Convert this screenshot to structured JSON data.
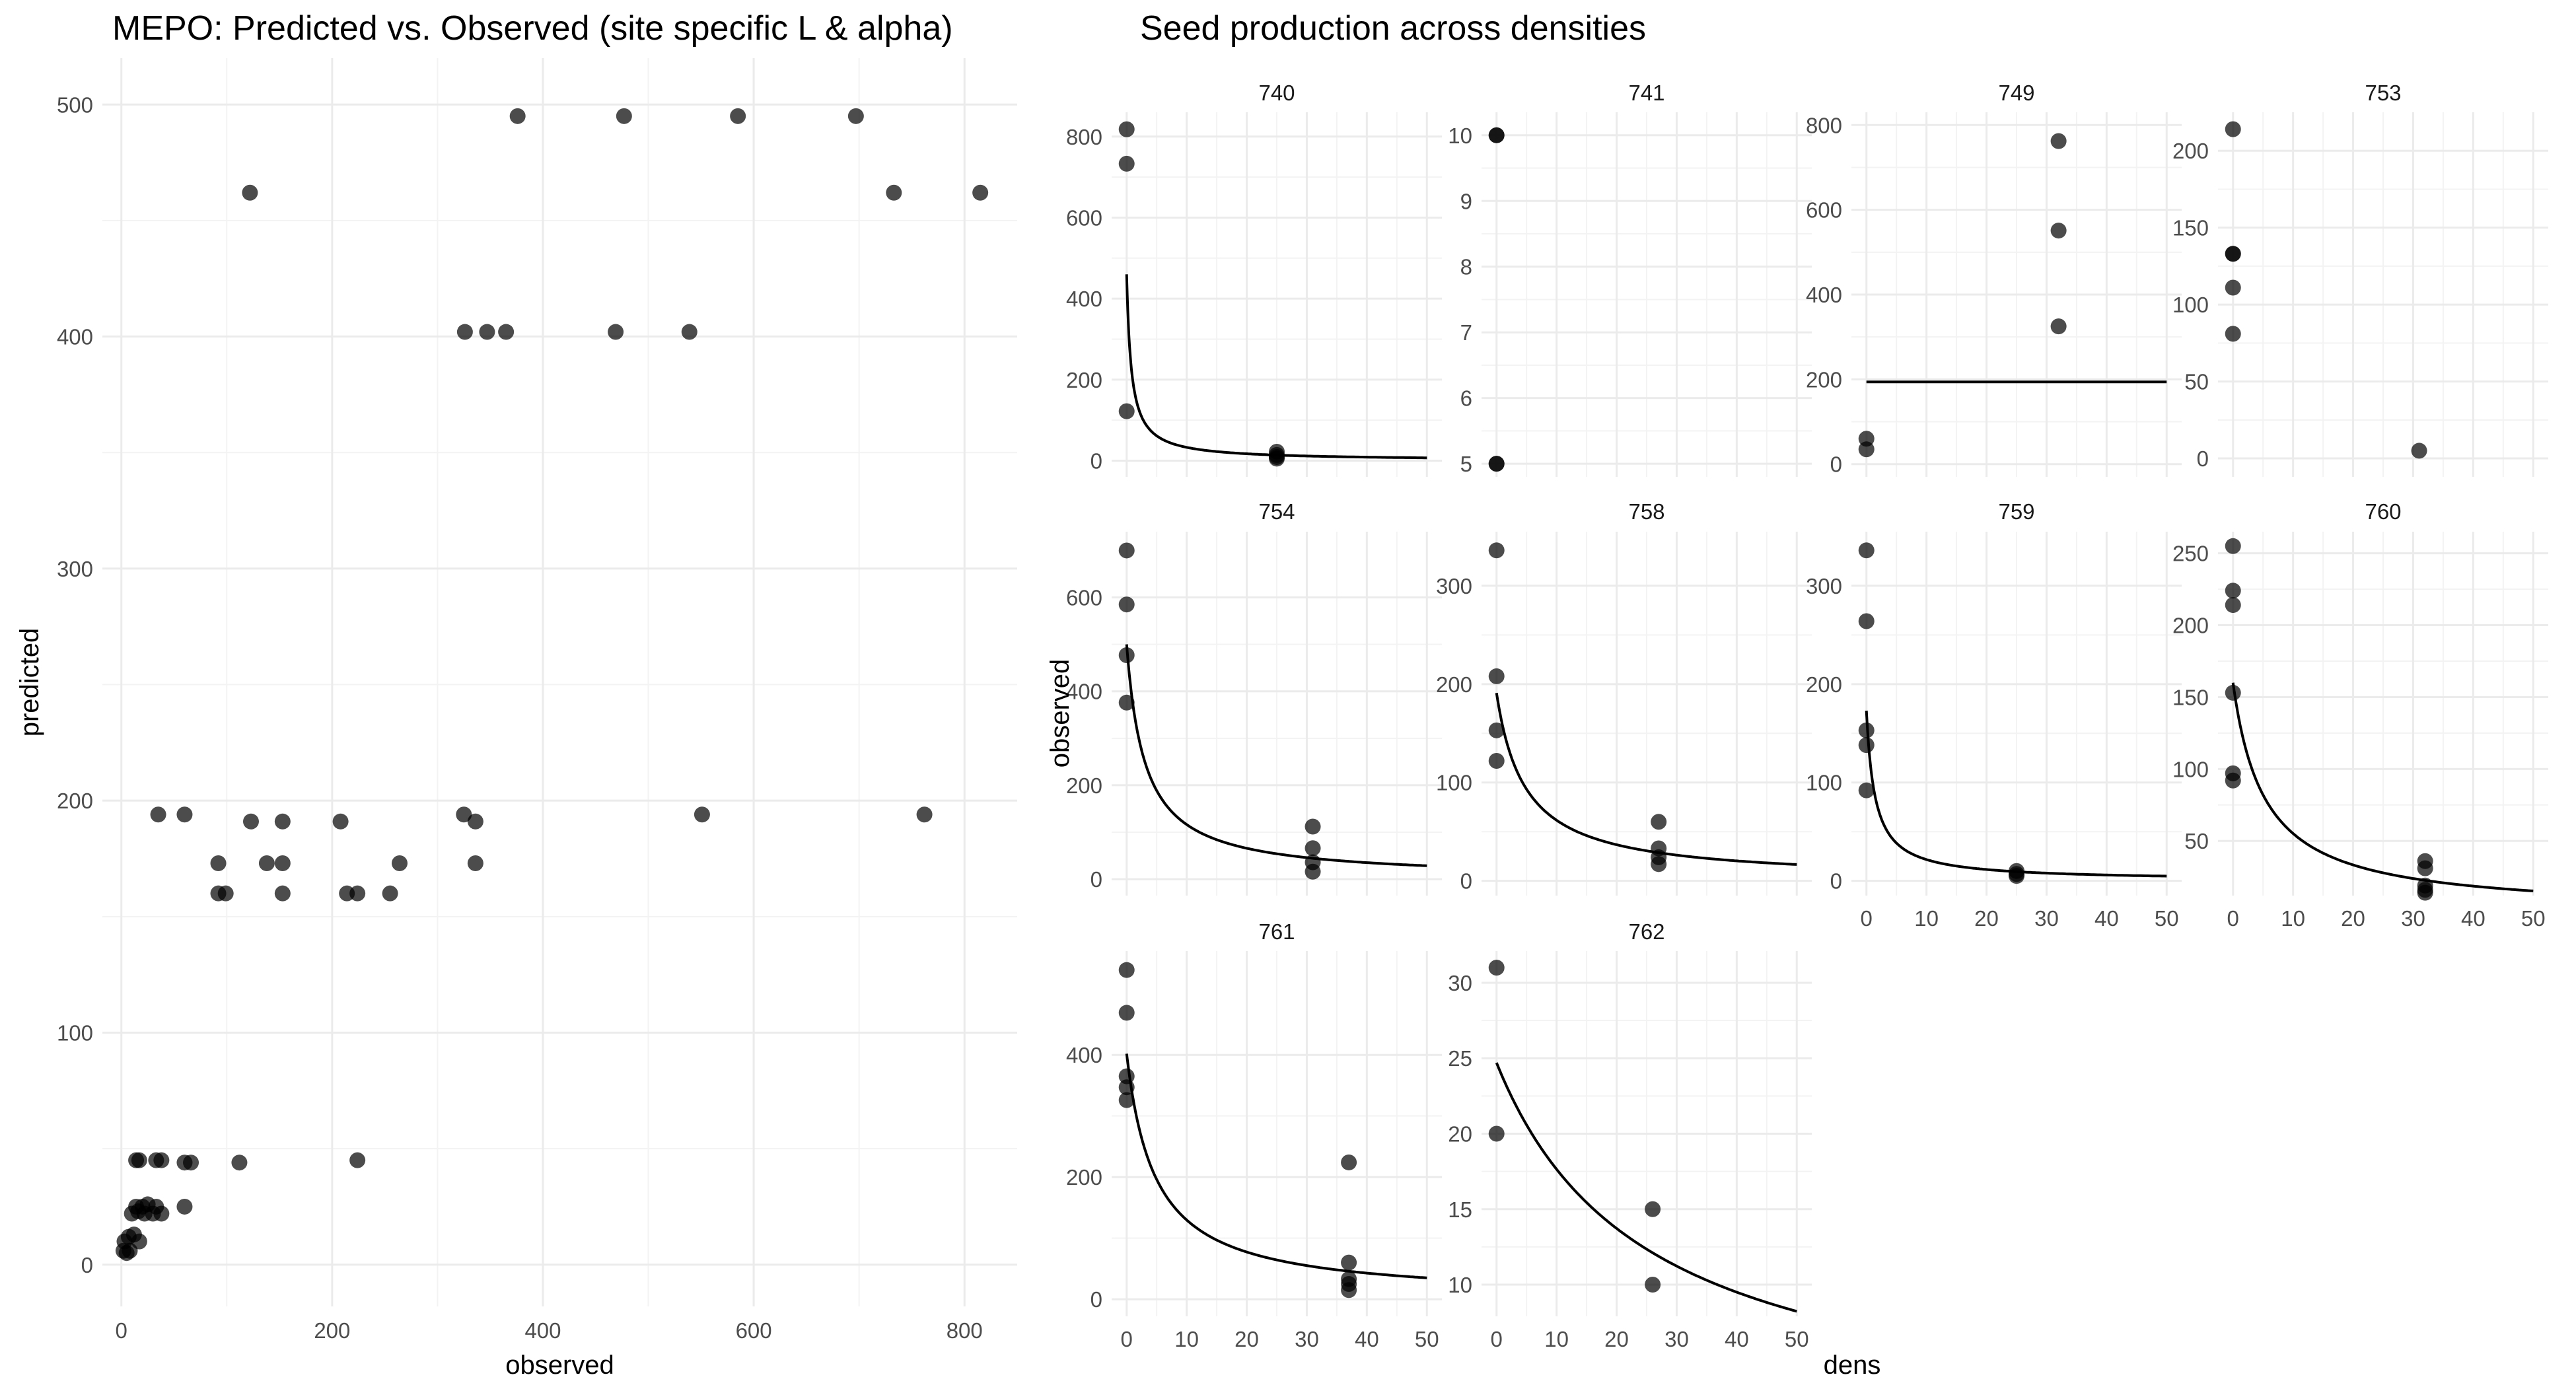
{
  "chart_data": [
    {
      "type": "scatter",
      "title": "MEPO: Predicted vs. Observed (site specific L & alpha)",
      "xlabel": "observed",
      "ylabel": "predicted",
      "xlim": [
        -18,
        850
      ],
      "ylim": [
        -18,
        520
      ],
      "x_ticks": [
        0,
        200,
        400,
        600,
        800
      ],
      "y_ticks": [
        0,
        100,
        200,
        300,
        400,
        500
      ],
      "grid": true,
      "points": [
        [
          122,
          462
        ],
        [
          733,
          462
        ],
        [
          815,
          462
        ],
        [
          376,
          495
        ],
        [
          477,
          495
        ],
        [
          585,
          495
        ],
        [
          697,
          495
        ],
        [
          326,
          402
        ],
        [
          347,
          402
        ],
        [
          365,
          402
        ],
        [
          469,
          402
        ],
        [
          539,
          402
        ],
        [
          35,
          194
        ],
        [
          60,
          194
        ],
        [
          325,
          194
        ],
        [
          551,
          194
        ],
        [
          762,
          194
        ],
        [
          123,
          191
        ],
        [
          153,
          191
        ],
        [
          208,
          191
        ],
        [
          336,
          191
        ],
        [
          92,
          173
        ],
        [
          138,
          173
        ],
        [
          153,
          173
        ],
        [
          264,
          173
        ],
        [
          336,
          173
        ],
        [
          92,
          160
        ],
        [
          99,
          160
        ],
        [
          153,
          160
        ],
        [
          214,
          160
        ],
        [
          224,
          160
        ],
        [
          255,
          160
        ],
        [
          14,
          45
        ],
        [
          17,
          45
        ],
        [
          33,
          45
        ],
        [
          38,
          45
        ],
        [
          60,
          44
        ],
        [
          66,
          44
        ],
        [
          112,
          44
        ],
        [
          224,
          45
        ],
        [
          14,
          25
        ],
        [
          20,
          25
        ],
        [
          25,
          26
        ],
        [
          33,
          25
        ],
        [
          60,
          25
        ],
        [
          10,
          22
        ],
        [
          16,
          23
        ],
        [
          22,
          22
        ],
        [
          30,
          22
        ],
        [
          38,
          22
        ],
        [
          3,
          10
        ],
        [
          7,
          12
        ],
        [
          12,
          13
        ],
        [
          17,
          10
        ],
        [
          2,
          6
        ],
        [
          5,
          5
        ],
        [
          8,
          6
        ]
      ]
    },
    {
      "type": "scatter",
      "title": "Seed production across densities",
      "xlabel": "dens",
      "ylabel": "observed",
      "x_ticks": [
        0,
        10,
        20,
        30,
        40,
        50
      ],
      "xlim": [
        -2.5,
        52.5
      ],
      "grid": true,
      "panels": [
        {
          "label": "740",
          "ylim": [
            -40,
            860
          ],
          "y_ticks": [
            0,
            200,
            400,
            600,
            800
          ],
          "curve": {
            "type": "hyperbolic",
            "L": 460,
            "alpha": 1.3
          },
          "points": [
            [
              0,
              818
            ],
            [
              0,
              733
            ],
            [
              0,
              122
            ],
            [
              25,
              22
            ],
            [
              25,
              14
            ],
            [
              25,
              9
            ],
            [
              25,
              5
            ]
          ]
        },
        {
          "label": "741",
          "ylim": [
            4.8,
            10.35
          ],
          "y_ticks": [
            5,
            6,
            7,
            8,
            9,
            10
          ],
          "curve": null,
          "points": [
            [
              0,
              10
            ],
            [
              0,
              10
            ],
            [
              0,
              5
            ],
            [
              0,
              5
            ]
          ]
        },
        {
          "label": "749",
          "ylim": [
            -30,
            830
          ],
          "y_ticks": [
            0,
            200,
            400,
            600,
            800
          ],
          "curve": {
            "type": "constant",
            "value": 194
          },
          "points": [
            [
              0,
              60
            ],
            [
              0,
              35
            ],
            [
              32,
              762
            ],
            [
              32,
              551
            ],
            [
              32,
              325
            ]
          ]
        },
        {
          "label": "753",
          "ylim": [
            -12,
            225
          ],
          "y_ticks": [
            0,
            50,
            100,
            150,
            200
          ],
          "curve": null,
          "points": [
            [
              0,
              214
            ],
            [
              0,
              133
            ],
            [
              0,
              133
            ],
            [
              0,
              111
            ],
            [
              0,
              81
            ],
            [
              31,
              5
            ]
          ]
        },
        {
          "label": "754",
          "ylim": [
            -35,
            740
          ],
          "y_ticks": [
            0,
            200,
            400,
            600
          ],
          "curve": {
            "type": "hyperbolic",
            "L": 500,
            "alpha": 0.33
          },
          "points": [
            [
              0,
              700
            ],
            [
              0,
              585
            ],
            [
              0,
              477
            ],
            [
              0,
              376
            ],
            [
              31,
              112
            ],
            [
              31,
              66
            ],
            [
              31,
              36
            ],
            [
              31,
              16
            ]
          ]
        },
        {
          "label": "758",
          "ylim": [
            -15,
            355
          ],
          "y_ticks": [
            0,
            100,
            200,
            300
          ],
          "curve": {
            "type": "hyperbolic",
            "L": 191,
            "alpha": 0.21
          },
          "points": [
            [
              0,
              336
            ],
            [
              0,
              208
            ],
            [
              0,
              153
            ],
            [
              0,
              122
            ],
            [
              27,
              60
            ],
            [
              27,
              33
            ],
            [
              27,
              24
            ],
            [
              27,
              17
            ]
          ]
        },
        {
          "label": "759",
          "ylim": [
            -15,
            355
          ],
          "y_ticks": [
            0,
            100,
            200,
            300
          ],
          "curve": {
            "type": "hyperbolic",
            "L": 173,
            "alpha": 0.7
          },
          "points": [
            [
              0,
              336
            ],
            [
              0,
              264
            ],
            [
              0,
              153
            ],
            [
              0,
              138
            ],
            [
              0,
              92
            ],
            [
              25,
              10
            ],
            [
              25,
              7
            ],
            [
              25,
              5
            ]
          ]
        },
        {
          "label": "760",
          "ylim": [
            12,
            265
          ],
          "y_ticks": [
            50,
            100,
            150,
            200,
            250
          ],
          "curve": {
            "type": "hyperbolic",
            "L": 160,
            "alpha": 0.19
          },
          "points": [
            [
              0,
              255
            ],
            [
              0,
              224
            ],
            [
              0,
              214
            ],
            [
              0,
              153
            ],
            [
              0,
              97
            ],
            [
              0,
              92
            ],
            [
              32,
              36
            ],
            [
              32,
              31
            ],
            [
              32,
              19
            ],
            [
              32,
              16
            ],
            [
              32,
              14
            ]
          ]
        },
        {
          "label": "761",
          "ylim": [
            -28,
            570
          ],
          "y_ticks": [
            0,
            200,
            400
          ],
          "curve": {
            "type": "hyperbolic",
            "L": 402,
            "alpha": 0.21
          },
          "points": [
            [
              0,
              539
            ],
            [
              0,
              469
            ],
            [
              0,
              365
            ],
            [
              0,
              347
            ],
            [
              0,
              326
            ],
            [
              37,
              224
            ],
            [
              37,
              60
            ],
            [
              37,
              33
            ],
            [
              37,
              25
            ],
            [
              37,
              15
            ]
          ]
        },
        {
          "label": "762",
          "ylim": [
            7.9,
            32.1
          ],
          "y_ticks": [
            10,
            15,
            20,
            25,
            30
          ],
          "curve": {
            "type": "hyperbolic",
            "L": 24.7,
            "alpha": 0.04
          },
          "points": [
            [
              0,
              31
            ],
            [
              0,
              20
            ],
            [
              26,
              15
            ],
            [
              26,
              10
            ]
          ]
        }
      ]
    }
  ]
}
